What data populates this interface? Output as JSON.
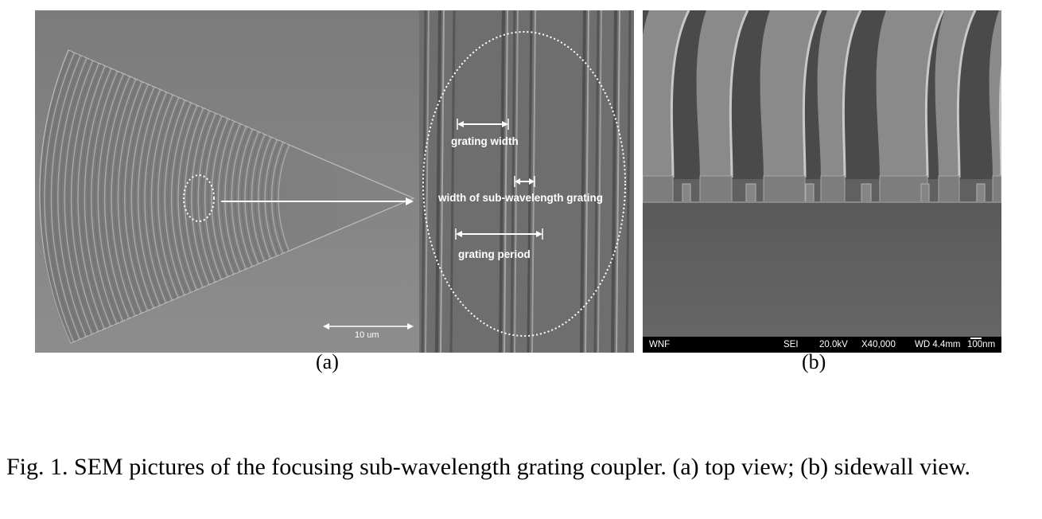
{
  "panel_a": {
    "labels": {
      "grating_width": "grating width",
      "sub_wavelength_width": "width of sub-wavelength grating",
      "grating_period": "grating period"
    },
    "scale_bar": "10 um",
    "caption": "(a)"
  },
  "panel_b": {
    "footer": {
      "operator": "WNF",
      "mode": "SEI",
      "voltage": "20.0kV",
      "magnification": "X40,000",
      "working_distance": "WD 4.4mm",
      "scale": "100nm"
    },
    "caption": "(b)"
  },
  "figure_caption": "Fig. 1. SEM pictures of the focusing sub-wavelength grating coupler. (a) top view; (b) sidewall view."
}
